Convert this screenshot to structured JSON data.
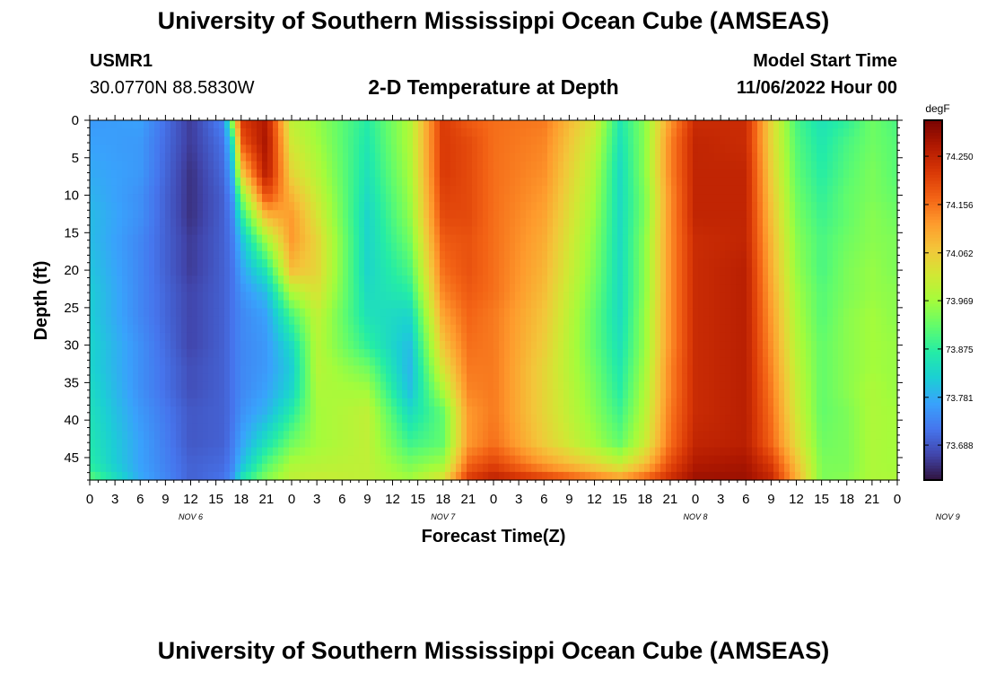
{
  "header": {
    "title": "University of Southern Mississippi Ocean Cube (AMSEAS)",
    "station_id": "USMR1",
    "station_coords": "30.0770N  88.5830W",
    "plot_title": "2-D Temperature at Depth",
    "model_start_label": "Model Start Time",
    "model_start_value": "11/06/2022 Hour 00"
  },
  "footer": {
    "title": "University of Southern Mississippi Ocean Cube (AMSEAS)"
  },
  "chart_data": {
    "type": "heatmap",
    "title": "2-D Temperature at Depth",
    "xlabel": "Forecast Time(Z)",
    "ylabel": "Depth (ft)",
    "units": "degF",
    "x_hours": [
      0,
      3,
      6,
      9,
      12,
      15,
      18,
      21,
      24,
      27,
      30,
      33,
      36,
      39,
      42,
      45,
      48,
      51,
      54,
      57,
      60,
      63,
      66,
      69,
      72,
      75,
      78,
      81,
      84,
      87,
      90,
      93,
      96
    ],
    "x_tick_labels": [
      "0",
      "3",
      "6",
      "9",
      "12",
      "15",
      "18",
      "21",
      "0",
      "3",
      "6",
      "9",
      "12",
      "15",
      "18",
      "21",
      "0",
      "3",
      "6",
      "9",
      "12",
      "15",
      "18",
      "21",
      "0",
      "3",
      "6",
      "9",
      "12",
      "15",
      "18",
      "21",
      "0"
    ],
    "date_labels": [
      {
        "label": "NOV 6",
        "hour": 12
      },
      {
        "label": "NOV 7",
        "hour": 42
      },
      {
        "label": "NOV 8",
        "hour": 72
      },
      {
        "label": "NOV 9",
        "hour": 102
      }
    ],
    "y_ticks": [
      0,
      5,
      10,
      15,
      20,
      25,
      30,
      35,
      40,
      45
    ],
    "ylim": [
      0,
      48
    ],
    "xlim": [
      0,
      96
    ],
    "colorbar": {
      "label": "degF",
      "ticks": [
        "74.250",
        "74.156",
        "74.062",
        "73.969",
        "73.875",
        "73.781",
        "73.688"
      ],
      "tick_values": [
        74.25,
        74.156,
        74.062,
        73.969,
        73.875,
        73.781,
        73.688
      ],
      "range": [
        73.62,
        74.32
      ],
      "colors": [
        "#30123b",
        "#4145ab",
        "#4675ed",
        "#39a2fc",
        "#1bcfd4",
        "#24eca6",
        "#61fc6c",
        "#a4fc3b",
        "#d1e834",
        "#f3c63a",
        "#fe9b2d",
        "#f36315",
        "#d93806",
        "#b11901",
        "#7a0402"
      ]
    },
    "depth_levels_ft": [
      0,
      3,
      7,
      10,
      13,
      16,
      20,
      23,
      26,
      30,
      33,
      36,
      39,
      43,
      46,
      48
    ],
    "hours": [
      0,
      6,
      12,
      16,
      17,
      18,
      21,
      24,
      27,
      33,
      38,
      42,
      45,
      48,
      54,
      60,
      63,
      66,
      69,
      72,
      78,
      81,
      84,
      87,
      90,
      93,
      96
    ],
    "temperature": [
      [
        73.76,
        73.77,
        73.66,
        73.74,
        73.98,
        74.22,
        74.27,
        74.0,
        73.96,
        73.87,
        73.98,
        74.22,
        74.18,
        74.16,
        74.15,
        74.02,
        73.86,
        73.95,
        74.12,
        74.24,
        74.24,
        74.05,
        73.9,
        73.85,
        73.88,
        73.93,
        73.9
      ],
      [
        73.77,
        73.76,
        73.66,
        73.72,
        73.86,
        74.18,
        74.28,
        74.02,
        73.97,
        73.86,
        73.98,
        74.22,
        74.2,
        74.16,
        74.14,
        74.0,
        73.85,
        73.95,
        74.14,
        74.25,
        74.24,
        74.05,
        73.91,
        73.86,
        73.9,
        73.93,
        73.91
      ],
      [
        73.78,
        73.76,
        73.65,
        73.71,
        73.8,
        74.06,
        74.27,
        74.05,
        73.99,
        73.85,
        73.97,
        74.22,
        74.2,
        74.16,
        74.13,
        73.98,
        73.84,
        73.95,
        74.14,
        74.25,
        74.25,
        74.06,
        73.92,
        73.87,
        73.91,
        73.94,
        73.91
      ],
      [
        73.79,
        73.75,
        73.65,
        73.7,
        73.76,
        73.94,
        74.2,
        74.09,
        74.01,
        73.84,
        73.96,
        74.21,
        74.2,
        74.16,
        74.12,
        73.97,
        73.84,
        73.94,
        74.13,
        74.25,
        74.25,
        74.07,
        73.93,
        73.88,
        73.92,
        73.94,
        73.92
      ],
      [
        73.8,
        73.75,
        73.65,
        73.7,
        73.74,
        73.86,
        74.08,
        74.12,
        74.03,
        73.83,
        73.95,
        74.2,
        74.2,
        74.16,
        74.11,
        73.96,
        73.84,
        73.94,
        74.13,
        74.25,
        74.25,
        74.08,
        73.94,
        73.89,
        73.92,
        73.95,
        73.93
      ],
      [
        73.8,
        73.74,
        73.66,
        73.7,
        73.73,
        73.8,
        73.97,
        74.12,
        74.05,
        73.83,
        73.93,
        74.18,
        74.19,
        74.16,
        74.1,
        73.95,
        73.84,
        73.95,
        74.13,
        74.24,
        74.25,
        74.09,
        73.95,
        73.9,
        73.93,
        73.95,
        73.94
      ],
      [
        73.81,
        73.74,
        73.66,
        73.7,
        73.72,
        73.77,
        73.86,
        74.08,
        74.05,
        73.83,
        73.9,
        74.16,
        74.19,
        74.16,
        74.09,
        73.94,
        73.84,
        73.95,
        74.13,
        74.24,
        74.26,
        74.1,
        73.96,
        73.9,
        73.94,
        73.96,
        73.94
      ],
      [
        73.82,
        73.74,
        73.67,
        73.7,
        73.72,
        73.75,
        73.8,
        73.98,
        74.03,
        73.84,
        73.87,
        74.14,
        74.18,
        74.16,
        74.08,
        73.93,
        73.84,
        73.95,
        74.13,
        74.24,
        74.26,
        74.11,
        73.97,
        73.91,
        73.94,
        73.96,
        73.95
      ],
      [
        73.82,
        73.74,
        73.67,
        73.7,
        73.72,
        73.74,
        73.77,
        73.9,
        74.0,
        73.85,
        73.83,
        74.11,
        74.17,
        74.15,
        74.07,
        73.92,
        73.84,
        73.96,
        74.13,
        74.24,
        74.26,
        74.12,
        73.98,
        73.91,
        73.95,
        73.97,
        73.95
      ],
      [
        73.83,
        73.75,
        73.67,
        73.7,
        73.72,
        73.74,
        73.76,
        73.84,
        73.99,
        73.88,
        73.8,
        74.07,
        74.16,
        74.15,
        74.06,
        73.92,
        73.85,
        73.96,
        74.13,
        74.24,
        74.26,
        74.13,
        73.99,
        73.92,
        73.95,
        73.97,
        73.96
      ],
      [
        73.83,
        73.75,
        73.68,
        73.7,
        73.72,
        73.74,
        73.76,
        73.82,
        73.99,
        73.93,
        73.79,
        74.03,
        74.15,
        74.15,
        74.05,
        73.93,
        73.86,
        73.97,
        74.14,
        74.24,
        74.26,
        74.14,
        74.0,
        73.92,
        73.95,
        73.97,
        73.96
      ],
      [
        73.84,
        73.75,
        73.68,
        73.7,
        73.72,
        73.74,
        73.77,
        73.83,
        73.98,
        73.97,
        73.8,
        73.98,
        74.14,
        74.15,
        74.05,
        73.94,
        73.87,
        73.98,
        74.14,
        74.24,
        74.26,
        74.15,
        74.01,
        73.92,
        73.95,
        73.98,
        73.96
      ],
      [
        73.85,
        73.76,
        73.69,
        73.7,
        73.72,
        73.75,
        73.79,
        73.87,
        73.97,
        74.0,
        73.84,
        73.92,
        74.12,
        74.15,
        74.05,
        73.95,
        73.89,
        73.99,
        74.15,
        74.24,
        74.26,
        74.16,
        74.02,
        73.92,
        73.94,
        73.98,
        73.97
      ],
      [
        73.86,
        73.77,
        73.69,
        73.7,
        73.73,
        73.77,
        73.85,
        73.93,
        73.97,
        74.0,
        73.89,
        73.92,
        74.12,
        74.16,
        74.06,
        73.97,
        73.92,
        74.01,
        74.16,
        74.25,
        74.26,
        74.17,
        74.04,
        73.93,
        73.94,
        73.98,
        73.97
      ],
      [
        73.87,
        73.77,
        73.7,
        73.71,
        73.74,
        73.8,
        73.91,
        73.98,
        73.99,
        74.0,
        73.94,
        73.97,
        74.17,
        74.21,
        74.12,
        74.05,
        74.01,
        74.08,
        74.2,
        74.27,
        74.28,
        74.22,
        74.08,
        73.94,
        73.94,
        73.98,
        73.97
      ],
      [
        73.92,
        73.78,
        73.7,
        73.72,
        73.76,
        73.86,
        73.95,
        74.0,
        74.01,
        74.0,
        73.97,
        74.04,
        74.22,
        74.26,
        74.22,
        74.16,
        74.13,
        74.18,
        74.24,
        74.29,
        74.29,
        74.25,
        74.1,
        73.94,
        73.95,
        73.98,
        73.98
      ]
    ]
  }
}
